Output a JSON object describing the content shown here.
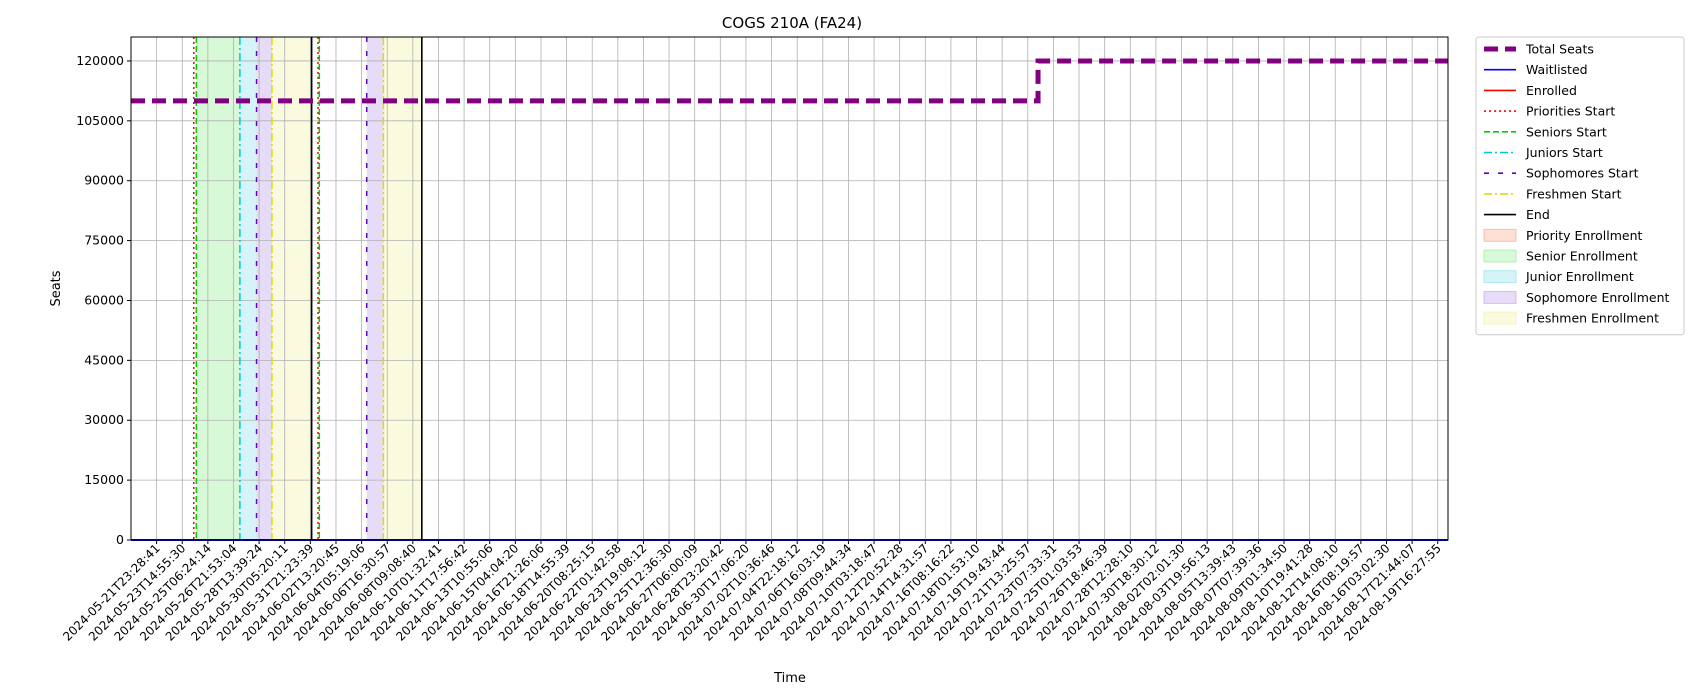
{
  "chart_data": {
    "type": "line",
    "title": "COGS 210A (FA24)",
    "xlabel": "Time",
    "ylabel": "Seats",
    "ylim": [
      0,
      126000
    ],
    "yticks": [
      0,
      15000,
      30000,
      45000,
      60000,
      75000,
      90000,
      105000,
      120000
    ],
    "xticks": [
      "2024-05-21T23:28:41",
      "2024-05-23T14:55:30",
      "2024-05-25T06:24:14",
      "2024-05-26T21:53:04",
      "2024-05-28T13:39:24",
      "2024-05-30T05:20:11",
      "2024-05-31T21:23:39",
      "2024-06-02T13:20:45",
      "2024-06-04T05:19:06",
      "2024-06-06T16:30:57",
      "2024-06-08T09:08:40",
      "2024-06-10T01:32:41",
      "2024-06-11T17:56:42",
      "2024-06-13T10:55:06",
      "2024-06-15T04:04:20",
      "2024-06-16T21:26:06",
      "2024-06-18T14:55:39",
      "2024-06-20T08:25:15",
      "2024-06-22T01:42:58",
      "2024-06-23T19:08:12",
      "2024-06-25T12:36:30",
      "2024-06-27T06:00:09",
      "2024-06-28T23:20:42",
      "2024-06-30T17:06:20",
      "2024-07-02T10:36:46",
      "2024-07-04T22:18:12",
      "2024-07-06T16:03:19",
      "2024-07-08T09:44:34",
      "2024-07-10T03:18:47",
      "2024-07-12T20:52:28",
      "2024-07-14T14:31:57",
      "2024-07-16T08:16:22",
      "2024-07-18T01:53:10",
      "2024-07-19T19:43:44",
      "2024-07-21T13:25:57",
      "2024-07-23T07:33:31",
      "2024-07-25T01:03:53",
      "2024-07-26T18:46:39",
      "2024-07-28T12:28:10",
      "2024-07-30T18:30:12",
      "2024-08-02T02:01:30",
      "2024-08-03T19:56:13",
      "2024-08-05T13:39:43",
      "2024-08-07T07:39:36",
      "2024-08-09T01:34:50",
      "2024-08-10T19:41:28",
      "2024-08-12T14:08:10",
      "2024-08-16T08:19:57",
      "2024-08-16T03:02:30",
      "2024-08-17T21:44:07",
      "2024-08-19T16:27:55"
    ],
    "x_index_range": [
      -1,
      50.4
    ],
    "series": [
      {
        "name": "Total Seats",
        "color": "#800080",
        "style": "dashed-thick",
        "points": [
          [
            -1,
            110000
          ],
          [
            34.4,
            110000
          ],
          [
            34.4,
            120000
          ],
          [
            50.4,
            120000
          ]
        ]
      },
      {
        "name": "Waitlisted",
        "color": "#0000ff",
        "style": "solid",
        "points": [
          [
            -1,
            0
          ],
          [
            50.4,
            0
          ]
        ]
      },
      {
        "name": "Enrolled",
        "color": "#ff0000",
        "style": "solid",
        "points": [
          [
            -1,
            0
          ],
          [
            50.4,
            0
          ]
        ]
      }
    ],
    "markers": [
      {
        "name": "Priorities Start",
        "color": "#ff0000",
        "style": "dotted",
        "x": [
          1.45,
          6.3
        ]
      },
      {
        "name": "Seniors Start",
        "color": "#00cc00",
        "style": "dashed",
        "x": [
          1.55,
          6.35
        ]
      },
      {
        "name": "Juniors Start",
        "color": "#00cccc",
        "style": "dashdot",
        "x": [
          3.25
        ]
      },
      {
        "name": "Sophomores Start",
        "color": "#6600cc",
        "style": "loosedash",
        "x": [
          3.9,
          8.2
        ]
      },
      {
        "name": "Freshmen Start",
        "color": "#dddd00",
        "style": "dashdot",
        "x": [
          4.5,
          8.85
        ]
      },
      {
        "name": "End",
        "color": "#000000",
        "style": "solid",
        "x": [
          6.05,
          10.35
        ]
      }
    ],
    "spans": [
      {
        "name": "Priority Enrollment",
        "color": "#f4a582",
        "ranges": []
      },
      {
        "name": "Senior Enrollment",
        "color": "#90ee90",
        "ranges": [
          [
            1.55,
            3.25
          ]
        ]
      },
      {
        "name": "Junior Enrollment",
        "color": "#87e0e8",
        "ranges": [
          [
            3.25,
            3.9
          ]
        ]
      },
      {
        "name": "Sophomore Enrollment",
        "color": "#b79ce8",
        "ranges": [
          [
            3.9,
            4.5
          ],
          [
            8.2,
            8.85
          ]
        ]
      },
      {
        "name": "Freshmen Enrollment",
        "color": "#f0f0a0",
        "ranges": [
          [
            4.5,
            6.05
          ],
          [
            8.85,
            10.35
          ]
        ]
      }
    ],
    "legend_position": "outside-right",
    "grid": true
  }
}
